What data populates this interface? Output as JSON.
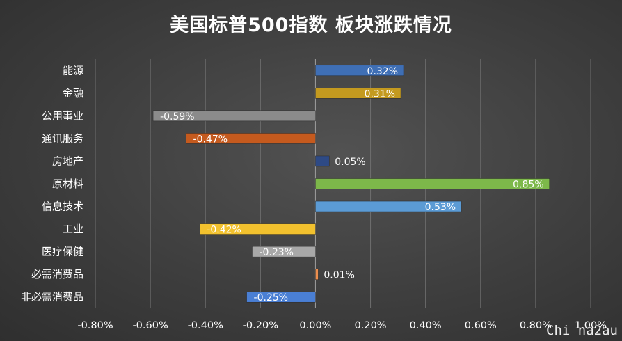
{
  "chart_data": {
    "type": "bar",
    "orientation": "horizontal",
    "title": "美国标普500指数 板块涨跌情况",
    "categories": [
      "能源",
      "金融",
      "公用事业",
      "通讯服务",
      "房地产",
      "原材料",
      "信息技术",
      "工业",
      "医疗保健",
      "必需消费品",
      "非必需消费品"
    ],
    "values": [
      0.32,
      0.31,
      -0.59,
      -0.47,
      0.05,
      0.85,
      0.53,
      -0.42,
      -0.23,
      0.01,
      -0.25
    ],
    "value_labels": [
      "0.32%",
      "0.31%",
      "-0.59%",
      "-0.47%",
      "0.05%",
      "0.85%",
      "0.53%",
      "-0.42%",
      "-0.23%",
      "0.01%",
      "-0.25%"
    ],
    "bar_colors": [
      "#3f6fb5",
      "#c49a1f",
      "#8b8b8b",
      "#c55a1e",
      "#2e4a85",
      "#7db84a",
      "#5b9bd5",
      "#f2c12e",
      "#a8a8a8",
      "#ed8e4e",
      "#4a7fd4"
    ],
    "xlim": [
      -0.8,
      1.0
    ],
    "x_ticks": [
      -0.8,
      -0.6,
      -0.4,
      -0.2,
      0.0,
      0.2,
      0.4,
      0.6,
      0.8,
      1.0
    ],
    "x_tick_labels": [
      "-0.80%",
      "-0.60%",
      "-0.40%",
      "-0.20%",
      "0.00%",
      "0.20%",
      "0.40%",
      "0.60%",
      "0.80%",
      "1.00%"
    ],
    "grid": true,
    "xlabel": "",
    "ylabel": ""
  },
  "watermark": "Chi na2au"
}
